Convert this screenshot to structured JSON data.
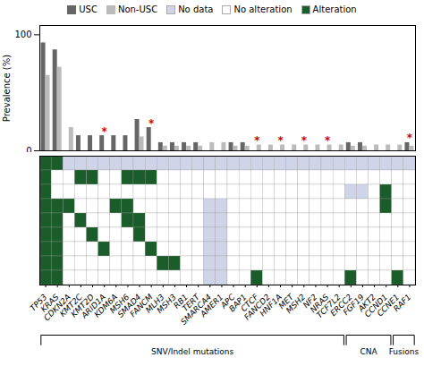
{
  "chart_data": [
    {
      "type": "bar",
      "categories": [
        "TP53",
        "KRAS",
        "CDKN2A",
        "KMT2C",
        "KMT2D",
        "ARID1A",
        "KDM6A",
        "MSH6",
        "SMAD4",
        "FANCM",
        "MLH3",
        "MSH3",
        "RB1",
        "TERT",
        "SMARCA4",
        "AMER1",
        "APC",
        "BAP1",
        "CTCF",
        "FANCD2",
        "HNF1A",
        "MET",
        "MSH2",
        "NF2",
        "NRAS",
        "TCF7L2",
        "ERCC2",
        "FGF19",
        "AKT2",
        "CCND1",
        "CCNE1",
        "RAF1"
      ],
      "ylabel": "Prevalence (%)",
      "ylim": [
        0,
        108
      ],
      "yticks": [
        0,
        100
      ],
      "tick_labels": "y",
      "legend": "top",
      "series": [
        {
          "name": "USC",
          "color": "#666666",
          "values": [
            93,
            87,
            0,
            13,
            13,
            13,
            13,
            13,
            27,
            20,
            7,
            7,
            7,
            7,
            0,
            0,
            7,
            7,
            0,
            0,
            0,
            0,
            0,
            0,
            0,
            0,
            7,
            7,
            0,
            0,
            0,
            7
          ]
        },
        {
          "name": "Non-USC",
          "color": "#bbbbbb",
          "values": [
            65,
            72,
            20,
            0,
            0,
            0,
            0,
            0,
            12,
            0,
            4,
            4,
            4,
            4,
            7,
            7,
            4,
            4,
            5,
            5,
            5,
            5,
            5,
            5,
            5,
            5,
            4,
            4,
            5,
            5,
            5,
            4
          ]
        }
      ],
      "annotations": [
        {
          "text": "*",
          "category": "ARID1A",
          "color": "#cc0000"
        },
        {
          "text": "*",
          "category": "FANCM",
          "color": "#cc0000"
        },
        {
          "text": "*",
          "category": "CTCF",
          "color": "#cc0000"
        },
        {
          "text": "*",
          "category": "HNF1A",
          "color": "#cc0000"
        },
        {
          "text": "*",
          "category": "MSH2",
          "color": "#cc0000"
        },
        {
          "text": "*",
          "category": "NRAS",
          "color": "#cc0000"
        },
        {
          "text": "*",
          "category": "RAF1",
          "color": "#cc0000"
        }
      ]
    },
    {
      "type": "heatmap",
      "categories": [
        "TP53",
        "KRAS",
        "CDKN2A",
        "KMT2C",
        "KMT2D",
        "ARID1A",
        "KDM6A",
        "MSH6",
        "SMAD4",
        "FANCM",
        "MLH3",
        "MSH3",
        "RB1",
        "TERT",
        "SMARCA4",
        "AMER1",
        "APC",
        "BAP1",
        "CTCF",
        "FANCD2",
        "HNF1A",
        "MET",
        "MSH2",
        "NF2",
        "NRAS",
        "TCF7L2",
        "ERCC2",
        "FGF19",
        "AKT2",
        "CCND1",
        "CCNE1",
        "RAF1"
      ],
      "tick_labels": "x",
      "legend": "top",
      "levels": [
        {
          "value": 0,
          "label": "No data",
          "color": "#d0d4e8"
        },
        {
          "value": 1,
          "label": "No alteration",
          "color": "#ffffff"
        },
        {
          "value": 2,
          "label": "Alteration",
          "color": "#1a5c2a"
        }
      ],
      "cells": [
        [
          2,
          2,
          0,
          0,
          0,
          0,
          0,
          0,
          0,
          0,
          0,
          0,
          0,
          0,
          0,
          0,
          0,
          0,
          0,
          0,
          0,
          0,
          0,
          0,
          0,
          0,
          0,
          0,
          0,
          0,
          0,
          0
        ],
        [
          2,
          1,
          1,
          2,
          2,
          1,
          1,
          2,
          2,
          2,
          1,
          1,
          1,
          1,
          1,
          1,
          1,
          1,
          1,
          1,
          1,
          1,
          1,
          1,
          1,
          1,
          1,
          1,
          1,
          1,
          1,
          1
        ],
        [
          2,
          1,
          1,
          1,
          1,
          1,
          1,
          1,
          1,
          1,
          1,
          1,
          1,
          1,
          1,
          1,
          1,
          1,
          1,
          1,
          1,
          1,
          1,
          1,
          1,
          1,
          0,
          0,
          1,
          2,
          1,
          1
        ],
        [
          2,
          2,
          2,
          1,
          1,
          1,
          2,
          2,
          1,
          1,
          1,
          1,
          1,
          1,
          0,
          0,
          1,
          1,
          1,
          1,
          1,
          1,
          1,
          1,
          1,
          1,
          1,
          1,
          1,
          2,
          1,
          1
        ],
        [
          2,
          2,
          1,
          2,
          1,
          1,
          1,
          2,
          2,
          1,
          1,
          1,
          1,
          1,
          0,
          0,
          1,
          1,
          1,
          1,
          1,
          1,
          1,
          1,
          1,
          1,
          1,
          1,
          1,
          1,
          1,
          1
        ],
        [
          2,
          2,
          1,
          1,
          2,
          1,
          1,
          1,
          2,
          1,
          1,
          1,
          1,
          1,
          0,
          0,
          1,
          1,
          1,
          1,
          1,
          1,
          1,
          1,
          1,
          1,
          1,
          1,
          1,
          1,
          1,
          1
        ],
        [
          2,
          2,
          1,
          1,
          1,
          2,
          1,
          1,
          1,
          2,
          1,
          1,
          1,
          1,
          0,
          0,
          1,
          1,
          1,
          1,
          1,
          1,
          1,
          1,
          1,
          1,
          1,
          1,
          1,
          1,
          1,
          1
        ],
        [
          2,
          2,
          1,
          1,
          1,
          1,
          1,
          1,
          1,
          1,
          2,
          2,
          1,
          1,
          0,
          0,
          1,
          1,
          1,
          1,
          1,
          1,
          1,
          1,
          1,
          1,
          1,
          1,
          1,
          1,
          1,
          1
        ],
        [
          2,
          2,
          1,
          1,
          1,
          1,
          1,
          1,
          1,
          1,
          1,
          1,
          1,
          1,
          0,
          0,
          1,
          1,
          2,
          1,
          1,
          1,
          1,
          1,
          1,
          1,
          2,
          1,
          1,
          1,
          2,
          1
        ]
      ],
      "sections": [
        {
          "label": "SNV/Indel mutations",
          "from": "TP53",
          "to": "TCF7L2"
        },
        {
          "label": "CNA",
          "from": "ERCC2",
          "to": "CCND1"
        },
        {
          "label": "Fusions",
          "from": "CCNE1",
          "to": "RAF1"
        }
      ]
    }
  ]
}
